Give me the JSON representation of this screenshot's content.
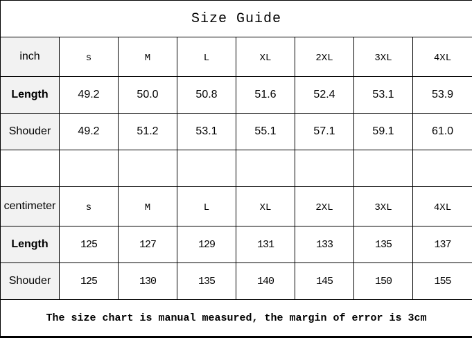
{
  "title": "Size Guide",
  "inch": {
    "unit_label": "inch",
    "sizes": [
      "s",
      "M",
      "L",
      "XL",
      "2XL",
      "3XL",
      "4XL"
    ],
    "rows": [
      {
        "label": "Length",
        "values": [
          "49.2",
          "50.0",
          "50.8",
          "51.6",
          "52.4",
          "53.1",
          "53.9"
        ]
      },
      {
        "label": "Shouder",
        "values": [
          "49.2",
          "51.2",
          "53.1",
          "55.1",
          "57.1",
          "59.1",
          "61.0"
        ]
      }
    ]
  },
  "centimeter": {
    "unit_label": "centimeter",
    "sizes": [
      "s",
      "M",
      "L",
      "XL",
      "2XL",
      "3XL",
      "4XL"
    ],
    "rows": [
      {
        "label": "Length",
        "values": [
          "125",
          "127",
          "129",
          "131",
          "133",
          "135",
          "137"
        ]
      },
      {
        "label": "Shouder",
        "values": [
          "125",
          "130",
          "135",
          "140",
          "145",
          "150",
          "155"
        ]
      }
    ]
  },
  "note": "The size chart is manual measured, the margin of error is 3cm"
}
